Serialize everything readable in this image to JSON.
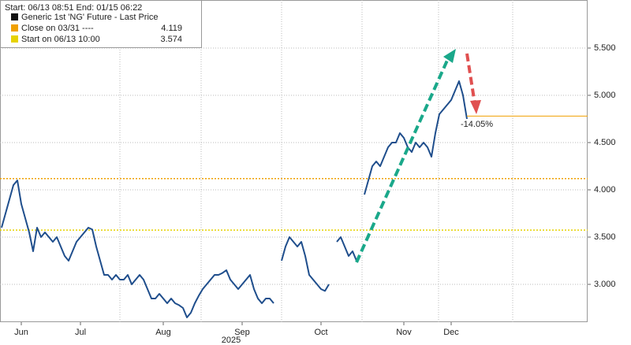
{
  "chart_data": {
    "type": "line",
    "subtitle": "Start: 06/13 08:51 End: 01/15 06:22",
    "year_label": "2025",
    "categories": [
      null,
      null,
      null,
      null,
      null,
      "Jun",
      null,
      null,
      null,
      null,
      null,
      null,
      null,
      null,
      null,
      null,
      null,
      null,
      null,
      null,
      "Jul",
      null,
      null,
      null,
      null,
      null,
      null,
      null,
      null,
      null,
      null,
      null,
      null,
      null,
      null,
      null,
      null,
      null,
      null,
      null,
      null,
      "Aug",
      null,
      null,
      null,
      null,
      null,
      null,
      null,
      null,
      null,
      null,
      null,
      null,
      null,
      null,
      null,
      null,
      null,
      null,
      null,
      "Sep",
      null,
      null,
      null,
      null,
      null,
      null,
      null,
      null,
      null,
      null,
      null,
      null,
      null,
      null,
      null,
      null,
      null,
      null,
      null,
      "Oct",
      null,
      null,
      null,
      null,
      null,
      null,
      null,
      null,
      null,
      null,
      null,
      null,
      null,
      null,
      null,
      null,
      null,
      null,
      null,
      null,
      "Nov",
      null,
      null,
      null,
      null,
      null,
      null,
      null,
      null,
      null,
      null,
      null,
      "Dec",
      null,
      null,
      null,
      null
    ],
    "series": [
      {
        "name": "Generic 1st 'NG' Future - Last Price",
        "color": "#1f4e8c",
        "values": [
          3.6,
          3.75,
          3.9,
          4.05,
          4.1,
          3.85,
          3.7,
          3.55,
          3.35,
          3.6,
          3.5,
          3.55,
          3.5,
          3.45,
          3.5,
          3.4,
          3.3,
          3.25,
          3.35,
          3.45,
          3.5,
          3.55,
          3.6,
          3.58,
          3.4,
          3.25,
          3.1,
          3.1,
          3.05,
          3.1,
          3.05,
          3.05,
          3.1,
          3.0,
          3.05,
          3.1,
          3.05,
          2.95,
          2.85,
          2.85,
          2.9,
          2.85,
          2.8,
          2.85,
          2.8,
          2.78,
          2.75,
          2.65,
          2.7,
          2.8,
          2.88,
          2.95,
          3.0,
          3.05,
          3.1,
          3.1,
          3.12,
          3.15,
          3.05,
          3.0,
          2.95,
          3.0,
          3.05,
          3.1,
          2.95,
          2.85,
          2.8,
          2.85,
          2.85,
          2.8,
          null,
          3.25,
          3.4,
          3.5,
          3.45,
          3.4,
          3.45,
          3.3,
          3.1,
          3.05,
          3.0,
          2.95,
          2.93,
          3.0,
          null,
          3.45,
          3.5,
          3.4,
          3.3,
          3.35,
          3.25,
          null,
          3.95,
          4.1,
          4.25,
          4.3,
          4.25,
          4.35,
          4.45,
          4.5,
          4.5,
          4.6,
          4.55,
          4.45,
          4.4,
          4.5,
          4.45,
          4.5,
          4.45,
          4.35,
          4.6,
          4.8,
          4.85,
          4.9,
          4.95,
          5.05,
          5.15,
          5.0,
          4.75
        ]
      }
    ],
    "levels": [
      {
        "name": "Close on 03/31 ----",
        "value": 4.119,
        "color": "#f0a000"
      },
      {
        "name": "Start on 06/13 10:00",
        "value": 3.574,
        "color": "#e6d200"
      }
    ],
    "last_line": 4.78,
    "annotation": "-14.05%",
    "ylim": [
      2.6,
      6.0
    ],
    "yticks": [
      {
        "value": 3,
        "label": "3.000"
      },
      {
        "value": 3.5,
        "label": "3.500"
      },
      {
        "value": 4,
        "label": "4.000"
      },
      {
        "value": 4.5,
        "label": "4.500"
      },
      {
        "value": 5,
        "label": "5.000"
      },
      {
        "value": 5.5,
        "label": "5.500"
      }
    ],
    "grid": true
  }
}
